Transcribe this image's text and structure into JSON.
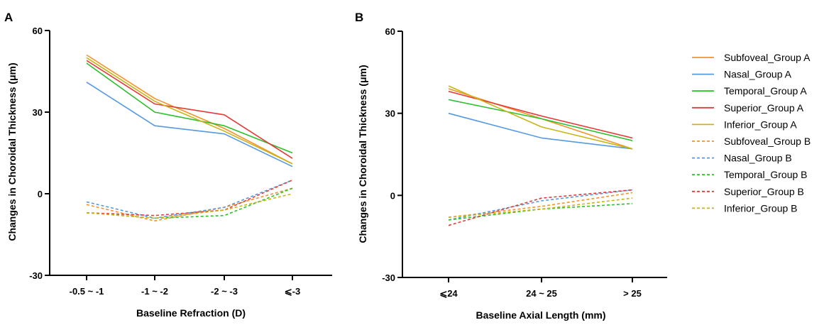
{
  "chart_data": [
    {
      "panel": "A",
      "type": "line",
      "xlabel": "Baseline Refraction (D)",
      "ylabel": "Changes in Choroidal Thickness (μm)",
      "ylim": [
        -30,
        60
      ],
      "yticks": [
        "-30",
        "0",
        "30",
        "60"
      ],
      "categories": [
        "-0.5 ~ -1",
        "-1 ~ -2",
        "-2 ~ -3",
        "⩽-3"
      ],
      "grid": false,
      "series": [
        {
          "name": "Subfoveal_Group A",
          "color": "#F5922B",
          "dashed": false,
          "values": [
            51,
            35,
            24,
            11
          ]
        },
        {
          "name": "Nasal_Group A",
          "color": "#5599E0",
          "dashed": false,
          "values": [
            41,
            25,
            22,
            10
          ]
        },
        {
          "name": "Temporal_Group A",
          "color": "#2DBF2D",
          "dashed": false,
          "values": [
            48,
            30,
            25,
            15
          ]
        },
        {
          "name": "Superior_Group A",
          "color": "#E53935",
          "dashed": false,
          "values": [
            49,
            33,
            29,
            13
          ]
        },
        {
          "name": "Inferior_Group A",
          "color": "#C8B416",
          "dashed": false,
          "values": [
            50,
            34,
            23,
            11
          ]
        },
        {
          "name": "Subfoveal_Group B",
          "color": "#F5922B",
          "dashed": true,
          "values": [
            -4,
            -10,
            -5,
            2
          ]
        },
        {
          "name": "Nasal_Group B",
          "color": "#5599E0",
          "dashed": true,
          "values": [
            -3,
            -9,
            -5,
            5
          ]
        },
        {
          "name": "Temporal_Group B",
          "color": "#2DBF2D",
          "dashed": true,
          "values": [
            -7,
            -9,
            -8,
            2
          ]
        },
        {
          "name": "Superior_Group B",
          "color": "#E53935",
          "dashed": true,
          "values": [
            -7,
            -8,
            -6,
            5
          ]
        },
        {
          "name": "Inferior_Group B",
          "color": "#C8B416",
          "dashed": true,
          "values": [
            -7,
            -9,
            -6,
            0
          ]
        }
      ]
    },
    {
      "panel": "B",
      "type": "line",
      "xlabel": "Baseline Axial Length (mm)",
      "ylabel": "Changes in Choroidal Thickness (μm)",
      "ylim": [
        -30,
        60
      ],
      "yticks": [
        "-30",
        "0",
        "30",
        "60"
      ],
      "categories": [
        "⩽24",
        "24 ~ 25",
        "> 25"
      ],
      "grid": false,
      "series": [
        {
          "name": "Subfoveal_Group A",
          "color": "#F5922B",
          "dashed": false,
          "values": [
            39,
            28,
            17
          ]
        },
        {
          "name": "Nasal_Group A",
          "color": "#5599E0",
          "dashed": false,
          "values": [
            30,
            21,
            17
          ]
        },
        {
          "name": "Temporal_Group A",
          "color": "#2DBF2D",
          "dashed": false,
          "values": [
            35,
            28,
            20
          ]
        },
        {
          "name": "Superior_Group A",
          "color": "#E53935",
          "dashed": false,
          "values": [
            38,
            29,
            21
          ]
        },
        {
          "name": "Inferior_Group A",
          "color": "#C8B416",
          "dashed": false,
          "values": [
            40,
            25,
            17
          ]
        },
        {
          "name": "Subfoveal_Group B",
          "color": "#F5922B",
          "dashed": true,
          "values": [
            -8,
            -4,
            1
          ]
        },
        {
          "name": "Nasal_Group B",
          "color": "#5599E0",
          "dashed": true,
          "values": [
            -9,
            -2,
            2
          ]
        },
        {
          "name": "Temporal_Group B",
          "color": "#2DBF2D",
          "dashed": true,
          "values": [
            -9,
            -5,
            -3
          ]
        },
        {
          "name": "Superior_Group B",
          "color": "#E53935",
          "dashed": true,
          "values": [
            -11,
            -1,
            2
          ]
        },
        {
          "name": "Inferior_Group B",
          "color": "#C8B416",
          "dashed": true,
          "values": [
            -8,
            -5,
            -1
          ]
        }
      ]
    }
  ],
  "legend": {
    "placement": "right",
    "items": [
      {
        "label": "Subfoveal_Group A",
        "color": "#F5922B",
        "dashed": false
      },
      {
        "label": "Nasal_Group A",
        "color": "#5599E0",
        "dashed": false
      },
      {
        "label": "Temporal_Group A",
        "color": "#2DBF2D",
        "dashed": false
      },
      {
        "label": "Superior_Group A",
        "color": "#E53935",
        "dashed": false
      },
      {
        "label": "Inferior_Group A",
        "color": "#C8B416",
        "dashed": false
      },
      {
        "label": "Subfoveal_Group B",
        "color": "#F5922B",
        "dashed": true
      },
      {
        "label": "Nasal_Group B",
        "color": "#5599E0",
        "dashed": true
      },
      {
        "label": "Temporal_Group B",
        "color": "#2DBF2D",
        "dashed": true
      },
      {
        "label": "Superior_Group B",
        "color": "#E53935",
        "dashed": true
      },
      {
        "label": "Inferior_Group B",
        "color": "#C8B416",
        "dashed": true
      }
    ]
  }
}
